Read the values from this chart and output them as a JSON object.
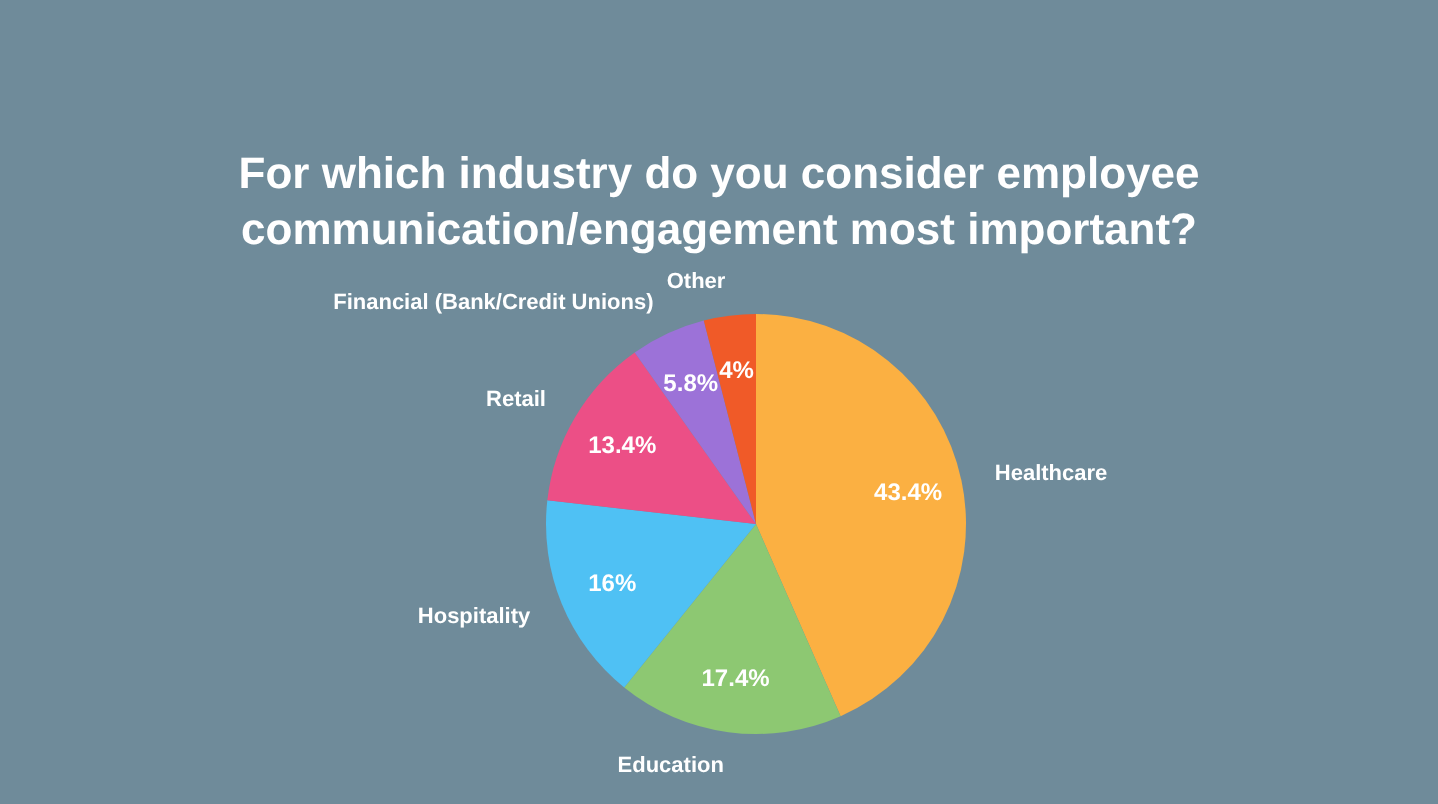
{
  "chart_data": {
    "type": "pie",
    "title": "For which industry do you consider employee communication/engagement most important?",
    "categories": [
      "Healthcare",
      "Education",
      "Hospitality",
      "Retail",
      "Financial (Bank/Credit Unions)",
      "Other"
    ],
    "values": [
      43.4,
      17.4,
      16,
      13.4,
      5.8,
      4
    ],
    "colors": [
      "#fbb042",
      "#8dc872",
      "#4fc1f4",
      "#ec4f86",
      "#9c72d8",
      "#f05a28"
    ],
    "value_labels": [
      "43.4%",
      "17.4%",
      "16%",
      "13.4%",
      "5.8%",
      "4%"
    ],
    "legend": false
  }
}
